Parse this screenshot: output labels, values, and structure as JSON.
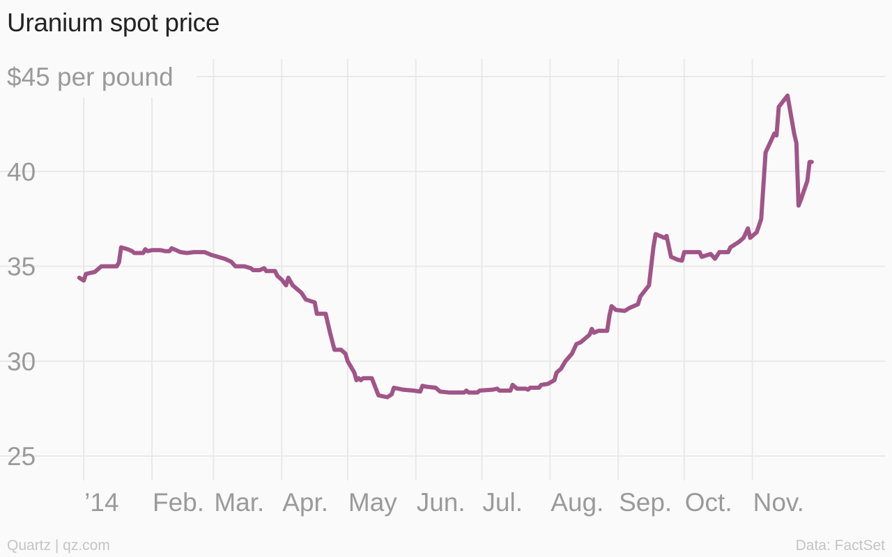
{
  "chart_data": {
    "type": "line",
    "title": "Uranium spot price",
    "unit_label": "$45 per pound",
    "ylim": [
      25,
      45
    ],
    "y_ticks": [
      25,
      30,
      35,
      40
    ],
    "x_tick_labels": [
      "’14",
      "Feb.",
      "Mar.",
      "Apr.",
      "May",
      "Jun.",
      "Jul.",
      "Aug.",
      "Sep.",
      "Oct.",
      "Nov."
    ],
    "x_tick_dates": [
      "2014-01-01",
      "2014-02-01",
      "2014-03-01",
      "2014-04-01",
      "2014-05-01",
      "2014-06-01",
      "2014-07-01",
      "2014-08-01",
      "2014-09-01",
      "2014-10-01",
      "2014-11-01"
    ],
    "x_range": [
      "2013-12-31",
      "2014-12-31"
    ],
    "grid": true,
    "line_color": "#a05588",
    "series": [
      {
        "points": [
          [
            "2013-12-30",
            34.4
          ],
          [
            "2014-01-01",
            34.25
          ],
          [
            "2014-01-02",
            34.6
          ],
          [
            "2014-01-06",
            34.7
          ],
          [
            "2014-01-09",
            35.0
          ],
          [
            "2014-01-14",
            35.0
          ],
          [
            "2014-01-16",
            35.0
          ],
          [
            "2014-01-17",
            35.2
          ],
          [
            "2014-01-18",
            36.0
          ],
          [
            "2014-01-21",
            35.9
          ],
          [
            "2014-01-23",
            35.8
          ],
          [
            "2014-01-24",
            35.7
          ],
          [
            "2014-01-28",
            35.7
          ],
          [
            "2014-01-29",
            35.9
          ],
          [
            "2014-01-30",
            35.8
          ],
          [
            "2014-02-01",
            35.85
          ],
          [
            "2014-02-05",
            35.85
          ],
          [
            "2014-02-07",
            35.8
          ],
          [
            "2014-02-09",
            35.8
          ],
          [
            "2014-02-10",
            35.95
          ],
          [
            "2014-02-12",
            35.85
          ],
          [
            "2014-02-14",
            35.75
          ],
          [
            "2014-02-17",
            35.7
          ],
          [
            "2014-02-20",
            35.75
          ],
          [
            "2014-02-25",
            35.75
          ],
          [
            "2014-02-28",
            35.6
          ],
          [
            "2014-03-03",
            35.5
          ],
          [
            "2014-03-06",
            35.4
          ],
          [
            "2014-03-09",
            35.25
          ],
          [
            "2014-03-11",
            35.0
          ],
          [
            "2014-03-15",
            35.0
          ],
          [
            "2014-03-18",
            34.9
          ],
          [
            "2014-03-19",
            34.8
          ],
          [
            "2014-03-22",
            34.8
          ],
          [
            "2014-03-24",
            34.9
          ],
          [
            "2014-03-25",
            34.75
          ],
          [
            "2014-03-29",
            34.75
          ],
          [
            "2014-03-30",
            34.5
          ],
          [
            "2014-04-01",
            34.3
          ],
          [
            "2014-04-03",
            34.0
          ],
          [
            "2014-04-04",
            34.4
          ],
          [
            "2014-04-06",
            34.0
          ],
          [
            "2014-04-08",
            33.8
          ],
          [
            "2014-04-10",
            33.6
          ],
          [
            "2014-04-12",
            33.25
          ],
          [
            "2014-04-16",
            33.1
          ],
          [
            "2014-04-17",
            32.5
          ],
          [
            "2014-04-21",
            32.5
          ],
          [
            "2014-04-23",
            31.5
          ],
          [
            "2014-04-25",
            30.6
          ],
          [
            "2014-04-28",
            30.6
          ],
          [
            "2014-04-30",
            30.4
          ],
          [
            "2014-05-01",
            30.0
          ],
          [
            "2014-05-04",
            29.4
          ],
          [
            "2014-05-05",
            29.0
          ],
          [
            "2014-05-06",
            29.1
          ],
          [
            "2014-05-07",
            29.0
          ],
          [
            "2014-05-08",
            29.1
          ],
          [
            "2014-05-12",
            29.1
          ],
          [
            "2014-05-14",
            28.5
          ],
          [
            "2014-05-15",
            28.2
          ],
          [
            "2014-05-19",
            28.1
          ],
          [
            "2014-05-21",
            28.25
          ],
          [
            "2014-05-22",
            28.6
          ],
          [
            "2014-05-26",
            28.5
          ],
          [
            "2014-05-31",
            28.45
          ],
          [
            "2014-06-03",
            28.4
          ],
          [
            "2014-06-04",
            28.7
          ],
          [
            "2014-06-06",
            28.65
          ],
          [
            "2014-06-10",
            28.6
          ],
          [
            "2014-06-12",
            28.4
          ],
          [
            "2014-06-16",
            28.35
          ],
          [
            "2014-06-23",
            28.35
          ],
          [
            "2014-06-24",
            28.45
          ],
          [
            "2014-06-25",
            28.35
          ],
          [
            "2014-06-29",
            28.35
          ],
          [
            "2014-06-30",
            28.45
          ],
          [
            "2014-07-06",
            28.5
          ],
          [
            "2014-07-08",
            28.55
          ],
          [
            "2014-07-09",
            28.45
          ],
          [
            "2014-07-14",
            28.45
          ],
          [
            "2014-07-15",
            28.75
          ],
          [
            "2014-07-17",
            28.55
          ],
          [
            "2014-07-21",
            28.55
          ],
          [
            "2014-07-22",
            28.5
          ],
          [
            "2014-07-23",
            28.6
          ],
          [
            "2014-07-27",
            28.6
          ],
          [
            "2014-07-28",
            28.75
          ],
          [
            "2014-07-31",
            28.8
          ],
          [
            "2014-08-03",
            29.0
          ],
          [
            "2014-08-04",
            29.4
          ],
          [
            "2014-08-06",
            29.6
          ],
          [
            "2014-08-08",
            30.0
          ],
          [
            "2014-08-11",
            30.4
          ],
          [
            "2014-08-13",
            30.9
          ],
          [
            "2014-08-15",
            31.0
          ],
          [
            "2014-08-17",
            31.2
          ],
          [
            "2014-08-19",
            31.4
          ],
          [
            "2014-08-20",
            31.7
          ],
          [
            "2014-08-21",
            31.5
          ],
          [
            "2014-08-23",
            31.6
          ],
          [
            "2014-08-27",
            31.6
          ],
          [
            "2014-08-28",
            32.4
          ],
          [
            "2014-08-29",
            32.9
          ],
          [
            "2014-08-31",
            32.7
          ],
          [
            "2014-09-04",
            32.65
          ],
          [
            "2014-09-06",
            32.8
          ],
          [
            "2014-09-08",
            32.9
          ],
          [
            "2014-09-10",
            33.0
          ],
          [
            "2014-09-11",
            33.4
          ],
          [
            "2014-09-13",
            33.7
          ],
          [
            "2014-09-15",
            34.0
          ],
          [
            "2014-09-17",
            36.0
          ],
          [
            "2014-09-18",
            36.7
          ],
          [
            "2014-09-20",
            36.6
          ],
          [
            "2014-09-22",
            36.5
          ],
          [
            "2014-09-23",
            36.6
          ],
          [
            "2014-09-25",
            35.5
          ],
          [
            "2014-09-28",
            35.35
          ],
          [
            "2014-09-30",
            35.3
          ],
          [
            "2014-10-01",
            35.75
          ],
          [
            "2014-10-08",
            35.75
          ],
          [
            "2014-10-09",
            35.5
          ],
          [
            "2014-10-13",
            35.65
          ],
          [
            "2014-10-15",
            35.4
          ],
          [
            "2014-10-17",
            35.75
          ],
          [
            "2014-10-21",
            35.75
          ],
          [
            "2014-10-22",
            36.0
          ],
          [
            "2014-10-26",
            36.3
          ],
          [
            "2014-10-28",
            36.5
          ],
          [
            "2014-10-30",
            37.0
          ],
          [
            "2014-10-31",
            36.5
          ],
          [
            "2014-11-03",
            36.8
          ],
          [
            "2014-11-05",
            37.5
          ],
          [
            "2014-11-07",
            41.0
          ],
          [
            "2014-11-11",
            42.0
          ],
          [
            "2014-11-12",
            41.9
          ],
          [
            "2014-11-13",
            43.4
          ],
          [
            "2014-11-15",
            43.7
          ],
          [
            "2014-11-17",
            44.0
          ],
          [
            "2014-11-20",
            42.0
          ],
          [
            "2014-11-21",
            41.5
          ],
          [
            "2014-11-22",
            38.2
          ],
          [
            "2014-11-23",
            38.5
          ],
          [
            "2014-11-26",
            39.5
          ],
          [
            "2014-11-27",
            40.5
          ],
          [
            "2014-11-28",
            40.5
          ]
        ]
      }
    ]
  },
  "footer": {
    "source_left": "Quartz | qz.com",
    "source_right": "Data: FactSet"
  }
}
